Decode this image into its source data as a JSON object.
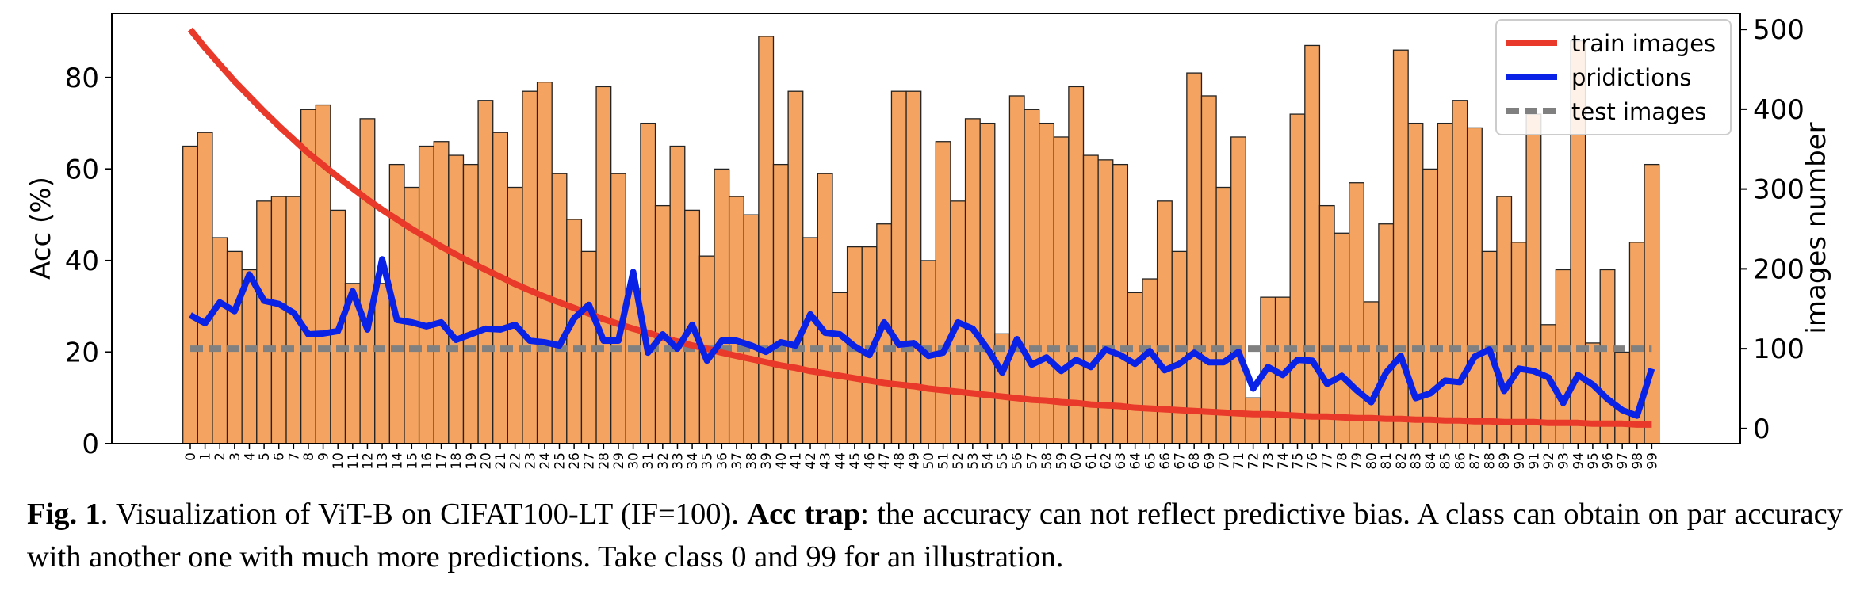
{
  "chart_data": {
    "type": "bar",
    "categories": [
      "0",
      "1",
      "2",
      "3",
      "4",
      "5",
      "6",
      "7",
      "8",
      "9",
      "10",
      "11",
      "12",
      "13",
      "14",
      "15",
      "16",
      "17",
      "18",
      "19",
      "20",
      "21",
      "22",
      "23",
      "24",
      "25",
      "26",
      "27",
      "28",
      "29",
      "30",
      "31",
      "32",
      "33",
      "34",
      "35",
      "36",
      "37",
      "38",
      "39",
      "40",
      "41",
      "42",
      "43",
      "44",
      "45",
      "46",
      "47",
      "48",
      "49",
      "50",
      "51",
      "52",
      "53",
      "54",
      "55",
      "56",
      "57",
      "58",
      "59",
      "60",
      "61",
      "62",
      "63",
      "64",
      "65",
      "66",
      "67",
      "68",
      "69",
      "70",
      "71",
      "72",
      "73",
      "74",
      "75",
      "76",
      "77",
      "78",
      "79",
      "80",
      "81",
      "82",
      "83",
      "84",
      "85",
      "86",
      "87",
      "88",
      "89",
      "90",
      "91",
      "92",
      "93",
      "94",
      "95",
      "96",
      "97",
      "98",
      "99"
    ],
    "xlabel": "",
    "ylabel": "Acc (%)",
    "y2label": "images number",
    "ylim": [
      0,
      94
    ],
    "y2lim": [
      -19,
      520
    ],
    "yticks": [
      0,
      20,
      40,
      60,
      80
    ],
    "y2ticks": [
      0,
      100,
      200,
      300,
      400,
      500
    ],
    "grid": false,
    "legend_position": "top-right",
    "legend": [
      "train images",
      "pridictions",
      "test images"
    ],
    "bar_color": "#f4a460",
    "series": [
      {
        "name": "Acc (%)",
        "type": "bar",
        "axis": "left",
        "values": [
          65,
          68,
          45,
          42,
          38,
          53,
          54,
          54,
          73,
          74,
          51,
          35,
          71,
          35,
          61,
          56,
          65,
          66,
          63,
          61,
          75,
          68,
          56,
          77,
          79,
          59,
          49,
          42,
          78,
          59,
          34,
          70,
          52,
          65,
          51,
          41,
          60,
          54,
          50,
          89,
          61,
          77,
          45,
          59,
          33,
          43,
          43,
          48,
          77,
          77,
          40,
          66,
          53,
          71,
          70,
          24,
          76,
          73,
          70,
          67,
          78,
          63,
          62,
          61,
          33,
          36,
          53,
          42,
          81,
          76,
          56,
          67,
          10,
          32,
          32,
          72,
          87,
          52,
          46,
          57,
          31,
          48,
          86,
          70,
          60,
          70,
          75,
          69,
          42,
          54,
          44,
          72,
          26,
          38,
          88,
          22,
          38,
          20,
          44,
          61
        ]
      },
      {
        "name": "train images",
        "type": "line",
        "axis": "right",
        "color": "#e8392a",
        "values": [
          500,
          477,
          456,
          435,
          416,
          397,
          379,
          362,
          345,
          330,
          315,
          301,
          287,
          274,
          262,
          250,
          239,
          228,
          218,
          208,
          199,
          190,
          181,
          173,
          165,
          158,
          151,
          144,
          137,
          131,
          125,
          120,
          114,
          109,
          104,
          100,
          95,
          91,
          87,
          83,
          79,
          76,
          72,
          69,
          66,
          63,
          60,
          57,
          55,
          53,
          50,
          48,
          46,
          44,
          42,
          40,
          38,
          36,
          35,
          33,
          32,
          30,
          29,
          28,
          26,
          25,
          24,
          23,
          22,
          21,
          20,
          19,
          18,
          18,
          17,
          16,
          15,
          15,
          14,
          13,
          13,
          12,
          12,
          11,
          11,
          10,
          10,
          9,
          9,
          8,
          8,
          8,
          7,
          7,
          7,
          6,
          6,
          6,
          5,
          5
        ]
      },
      {
        "name": "pridictions",
        "type": "line",
        "axis": "right",
        "color": "#0a22e6",
        "values": [
          142,
          132,
          158,
          147,
          193,
          160,
          156,
          145,
          118,
          119,
          122,
          172,
          124,
          212,
          136,
          133,
          128,
          133,
          111,
          118,
          125,
          124,
          130,
          110,
          108,
          104,
          138,
          155,
          110,
          110,
          196,
          95,
          118,
          100,
          130,
          85,
          110,
          110,
          104,
          96,
          108,
          104,
          143,
          120,
          118,
          103,
          92,
          133,
          105,
          107,
          91,
          95,
          133,
          125,
          100,
          70,
          112,
          80,
          89,
          72,
          86,
          77,
          99,
          92,
          81,
          97,
          73,
          81,
          95,
          83,
          83,
          96,
          50,
          77,
          67,
          86,
          85,
          56,
          66,
          48,
          33,
          70,
          91,
          38,
          44,
          60,
          58,
          90,
          99,
          47,
          75,
          72,
          64,
          32,
          67,
          55,
          37,
          23,
          16,
          75
        ]
      },
      {
        "name": "test images",
        "type": "line",
        "axis": "right",
        "color": "#808080",
        "dashed": true,
        "values": [
          100,
          100,
          100,
          100,
          100,
          100,
          100,
          100,
          100,
          100,
          100,
          100,
          100,
          100,
          100,
          100,
          100,
          100,
          100,
          100,
          100,
          100,
          100,
          100,
          100,
          100,
          100,
          100,
          100,
          100,
          100,
          100,
          100,
          100,
          100,
          100,
          100,
          100,
          100,
          100,
          100,
          100,
          100,
          100,
          100,
          100,
          100,
          100,
          100,
          100,
          100,
          100,
          100,
          100,
          100,
          100,
          100,
          100,
          100,
          100,
          100,
          100,
          100,
          100,
          100,
          100,
          100,
          100,
          100,
          100,
          100,
          100,
          100,
          100,
          100,
          100,
          100,
          100,
          100,
          100,
          100,
          100,
          100,
          100,
          100,
          100,
          100,
          100,
          100,
          100,
          100,
          100,
          100,
          100,
          100,
          100,
          100,
          100,
          100,
          100
        ]
      }
    ]
  },
  "caption": {
    "fig_label": "Fig. 1",
    "part1": ". Visualization of ViT-B on CIFAT100-LT (IF=100). ",
    "bold_term": "Acc trap",
    "part2": ": the accuracy can not reflect predictive bias. A class can obtain on par accuracy with another one with much more predictions. Take class 0 and 99 for an illustration."
  }
}
